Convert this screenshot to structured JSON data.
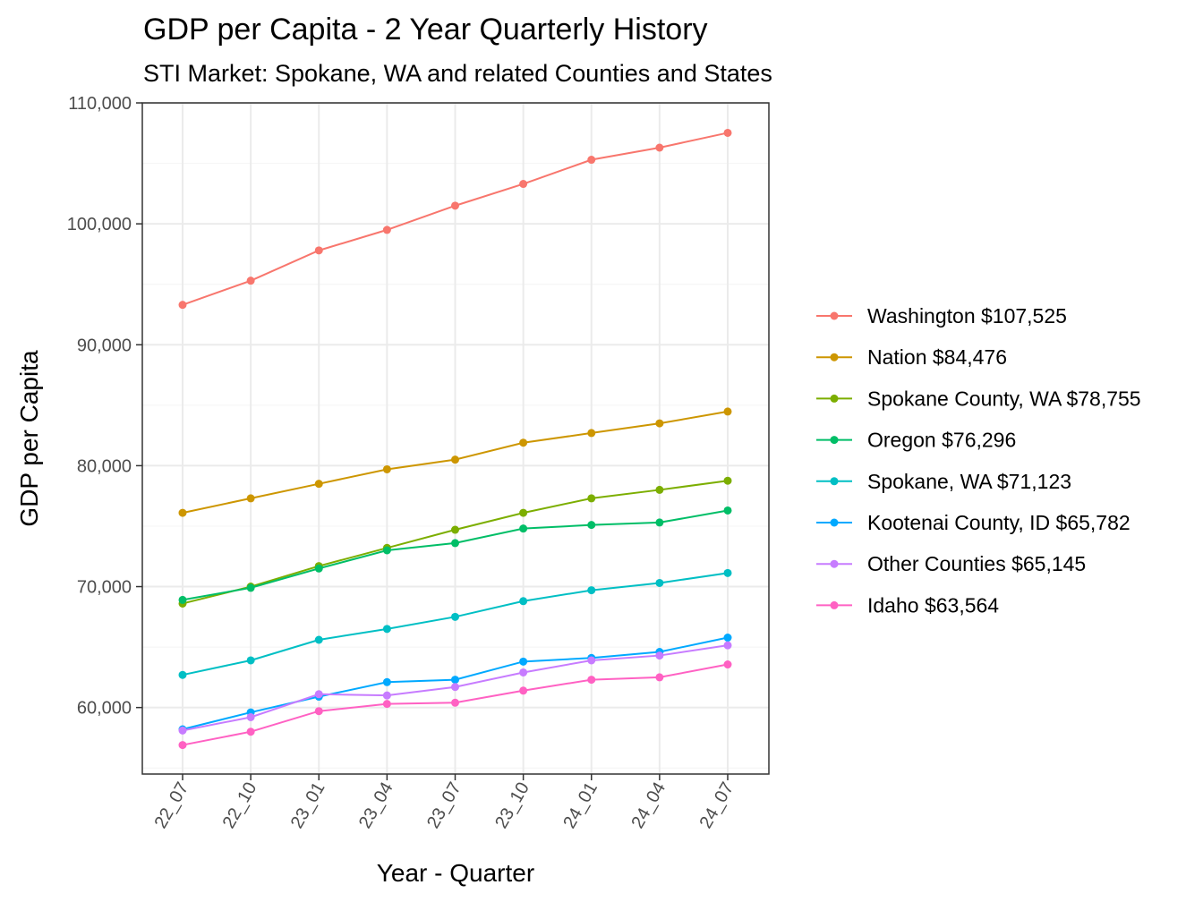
{
  "chart_data": {
    "type": "line",
    "title": "GDP per Capita - 2 Year Quarterly History",
    "subtitle": "STI Market: Spokane, WA and related Counties and States",
    "xlabel": "Year - Quarter",
    "ylabel": "GDP per Capita",
    "categories": [
      "22_07",
      "22_10",
      "23_01",
      "23_04",
      "23_07",
      "23_10",
      "24_01",
      "24_04",
      "24_07"
    ],
    "ylim": [
      54500,
      110000
    ],
    "yticks": [
      60000,
      70000,
      80000,
      90000,
      100000,
      110000
    ],
    "ytick_labels": [
      "60,000",
      "70,000",
      "80,000",
      "90,000",
      "100,000",
      "110,000"
    ],
    "grid": true,
    "legend_position": "right",
    "series": [
      {
        "name": "Washington $107,525",
        "color": "#F8766D",
        "values": [
          93300,
          95300,
          97800,
          99500,
          101500,
          103300,
          105300,
          106300,
          107525
        ]
      },
      {
        "name": "Nation $84,476",
        "color": "#CD9600",
        "values": [
          76100,
          77300,
          78500,
          79700,
          80500,
          81900,
          82700,
          83500,
          84476
        ]
      },
      {
        "name": "Spokane County, WA $78,755",
        "color": "#7CAE00",
        "values": [
          68600,
          70000,
          71700,
          73200,
          74700,
          76100,
          77300,
          78000,
          78755
        ]
      },
      {
        "name": "Oregon $76,296",
        "color": "#00BE67",
        "values": [
          68900,
          69900,
          71500,
          73000,
          73600,
          74800,
          75100,
          75300,
          76296
        ]
      },
      {
        "name": "Spokane, WA $71,123",
        "color": "#00BFC4",
        "values": [
          62700,
          63900,
          65600,
          66500,
          67500,
          68800,
          69700,
          70300,
          71123
        ]
      },
      {
        "name": "Kootenai County, ID $65,782",
        "color": "#00A9FF",
        "values": [
          58200,
          59600,
          60900,
          62100,
          62300,
          63800,
          64100,
          64600,
          65782
        ]
      },
      {
        "name": "Other Counties $65,145",
        "color": "#C77CFF",
        "values": [
          58100,
          59200,
          61100,
          61000,
          61700,
          62900,
          63900,
          64300,
          65145
        ]
      },
      {
        "name": "Idaho $63,564",
        "color": "#FF61C3",
        "values": [
          56900,
          58000,
          59700,
          60300,
          60400,
          61400,
          62300,
          62500,
          63564
        ]
      }
    ]
  }
}
